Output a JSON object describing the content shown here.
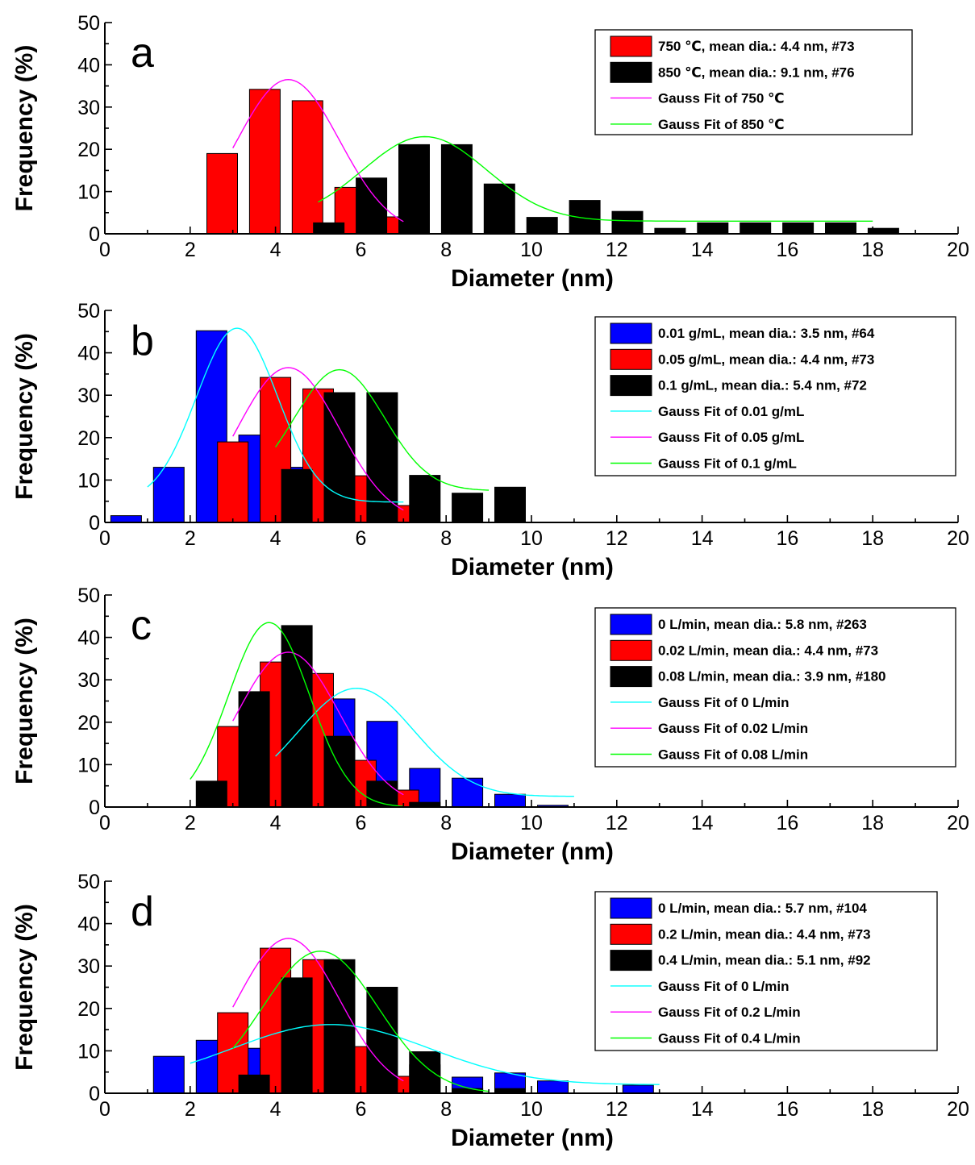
{
  "chart_data": [
    {
      "type": "bar",
      "panel_label": "a",
      "xlabel": "Diameter (nm)",
      "ylabel": "Frequency (%)",
      "xlim": [
        0,
        20
      ],
      "ylim": [
        0,
        50
      ],
      "xticks": [
        "0",
        "2",
        "4",
        "6",
        "8",
        "10",
        "12",
        "14",
        "16",
        "18",
        "20"
      ],
      "yticks": [
        "0",
        "10",
        "20",
        "30",
        "40",
        "50"
      ],
      "legend_position": "top-right",
      "series": [
        {
          "name": "750 ℃, mean dia.: 4.4 nm, #73",
          "color": "#ff0000",
          "x": [
            3,
            4,
            5,
            6,
            7
          ],
          "values": [
            19,
            34.2,
            31.5,
            11,
            4
          ]
        },
        {
          "name": "850 ℃, mean dia.: 9.1 nm, #76",
          "color": "#000000",
          "x": [
            5,
            6,
            7,
            8,
            9,
            10,
            11,
            12,
            13,
            14,
            15,
            16,
            17,
            18
          ],
          "values": [
            2.6,
            13.2,
            21.1,
            21.1,
            11.8,
            3.9,
            7.9,
            5.3,
            1.3,
            2.6,
            2.6,
            2.6,
            2.6,
            1.3
          ]
        }
      ],
      "fits": [
        {
          "name": "Gauss Fit of 750 ℃",
          "color": "#ff00ff",
          "y0": 0,
          "A": 36.5,
          "xc": 4.3,
          "w": 1.2,
          "x_range": [
            3,
            7
          ]
        },
        {
          "name": "Gauss Fit of 850 ℃",
          "color": "#00ff00",
          "y0": 3,
          "A": 20,
          "xc": 7.5,
          "w": 1.45,
          "x_range": [
            5,
            18
          ]
        }
      ]
    },
    {
      "type": "bar",
      "panel_label": "b",
      "xlabel": "Diameter (nm)",
      "ylabel": "Frequency (%)",
      "xlim": [
        0,
        20
      ],
      "ylim": [
        0,
        50
      ],
      "xticks": [
        "0",
        "2",
        "4",
        "6",
        "8",
        "10",
        "12",
        "14",
        "16",
        "18",
        "20"
      ],
      "yticks": [
        "0",
        "10",
        "20",
        "30",
        "40",
        "50"
      ],
      "legend_position": "top-right",
      "series": [
        {
          "name": "0.01 g/mL, mean dia.: 3.5 nm, #64",
          "color": "#0000ff",
          "x": [
            1,
            2,
            3,
            4,
            5,
            6,
            7
          ],
          "values": [
            1.6,
            13,
            45.2,
            20.6,
            13,
            3.6,
            1.6
          ]
        },
        {
          "name": "0.05 g/mL, mean dia.: 4.4 nm, #73",
          "color": "#ff0000",
          "x": [
            3,
            4,
            5,
            6,
            7
          ],
          "values": [
            19,
            34.2,
            31.5,
            11,
            4
          ]
        },
        {
          "name": "0.1 g/mL, mean dia.: 5.4 nm, #72",
          "color": "#000000",
          "x": [
            4,
            5,
            6,
            7,
            8,
            9
          ],
          "values": [
            12.5,
            30.6,
            30.6,
            11.1,
            6.9,
            8.3
          ]
        }
      ],
      "fits": [
        {
          "name": "Gauss Fit of 0.01 g/mL",
          "color": "#00ffff",
          "y0": 4.8,
          "A": 41,
          "xc": 3.1,
          "w": 0.95,
          "x_range": [
            1,
            7
          ]
        },
        {
          "name": "Gauss Fit of  0.05 g/mL",
          "color": "#ff00ff",
          "y0": 0,
          "A": 36.5,
          "xc": 4.3,
          "w": 1.2,
          "x_range": [
            3,
            7
          ]
        },
        {
          "name": "Gauss Fit of 0.1 g/mL",
          "color": "#00ff00",
          "y0": 7.5,
          "A": 28.5,
          "xc": 5.5,
          "w": 1.05,
          "x_range": [
            4,
            9
          ]
        }
      ]
    },
    {
      "type": "bar",
      "panel_label": "c",
      "xlabel": "Diameter (nm)",
      "ylabel": "Frequency (%)",
      "xlim": [
        0,
        20
      ],
      "ylim": [
        0,
        50
      ],
      "xticks": [
        "0",
        "2",
        "4",
        "6",
        "8",
        "10",
        "12",
        "14",
        "16",
        "18",
        "20"
      ],
      "yticks": [
        "0",
        "10",
        "20",
        "30",
        "40",
        "50"
      ],
      "legend_position": "top-right",
      "series": [
        {
          "name": "0 L/min, mean dia.: 5.8 nm, #263",
          "color": "#0000ff",
          "x": [
            4,
            5,
            6,
            7,
            8,
            9,
            10,
            11
          ],
          "values": [
            7.4,
            27.4,
            25.5,
            20.2,
            9.1,
            6.8,
            3,
            0.4
          ]
        },
        {
          "name": "0.02 L/min, mean dia.: 4.4 nm, #73",
          "color": "#ff0000",
          "x": [
            3,
            4,
            5,
            6,
            7
          ],
          "values": [
            19,
            34.2,
            31.5,
            11,
            4
          ]
        },
        {
          "name": "0.08 L/min, mean dia.: 3.9 nm, #180",
          "color": "#000000",
          "x": [
            2,
            3,
            4,
            5,
            6,
            7
          ],
          "values": [
            6.1,
            27.2,
            42.8,
            16.7,
            6.1,
            1.1
          ]
        }
      ],
      "fits": [
        {
          "name": "Gauss Fit of 0 L/min",
          "color": "#00ffff",
          "y0": 2.5,
          "A": 25.5,
          "xc": 5.9,
          "w": 1.35,
          "x_range": [
            4,
            11
          ]
        },
        {
          "name": "Gauss Fit of  0.02 L/min",
          "color": "#ff00ff",
          "y0": 0,
          "A": 36.5,
          "xc": 4.3,
          "w": 1.2,
          "x_range": [
            3,
            7
          ]
        },
        {
          "name": "Gauss Fit of 0.08 L/min",
          "color": "#00ff00",
          "y0": 0,
          "A": 43.5,
          "xc": 3.85,
          "w": 0.95,
          "x_range": [
            2,
            7
          ]
        }
      ]
    },
    {
      "type": "bar",
      "panel_label": "d",
      "xlabel": "Diameter (nm)",
      "ylabel": "Frequency (%)",
      "xlim": [
        0,
        20
      ],
      "ylim": [
        0,
        50
      ],
      "xticks": [
        "0",
        "2",
        "4",
        "6",
        "8",
        "10",
        "12",
        "14",
        "16",
        "18",
        "20"
      ],
      "yticks": [
        "0",
        "10",
        "20",
        "30",
        "40",
        "50"
      ],
      "legend_position": "top-right",
      "series": [
        {
          "name": "0 L/min, mean dia.: 5.7 nm, #104",
          "color": "#0000ff",
          "x": [
            2,
            3,
            4,
            5,
            6,
            7,
            8,
            9,
            10,
            11,
            13
          ],
          "values": [
            8.7,
            12.5,
            10.6,
            16.4,
            17.3,
            14.4,
            6.7,
            3.8,
            4.8,
            2.9,
            1.9
          ]
        },
        {
          "name": "0.2 L/min, mean dia.: 4.4 nm, #73",
          "color": "#ff0000",
          "x": [
            3,
            4,
            5,
            6,
            7
          ],
          "values": [
            19,
            34.2,
            31.5,
            11,
            4
          ]
        },
        {
          "name": "0.4 L/min, mean dia.: 5.1 nm, #92",
          "color": "#000000",
          "x": [
            3,
            4,
            5,
            6,
            7,
            8,
            9
          ],
          "values": [
            4.3,
            27.2,
            31.5,
            25,
            9.8,
            1.1,
            1.1
          ]
        }
      ],
      "fits": [
        {
          "name": "Gauss Fit of 0 L/min",
          "color": "#00ffff",
          "y0": 2,
          "A": 14.2,
          "xc": 5.3,
          "w": 2.3,
          "x_range": [
            2,
            13
          ]
        },
        {
          "name": "Gauss Fit of  0.2 L/min",
          "color": "#ff00ff",
          "y0": 0,
          "A": 36.5,
          "xc": 4.3,
          "w": 1.2,
          "x_range": [
            3,
            7
          ]
        },
        {
          "name": "Gauss Fit of 0.4 L/min",
          "color": "#00ff00",
          "y0": 0,
          "A": 33.5,
          "xc": 5.05,
          "w": 1.35,
          "x_range": [
            3,
            9
          ]
        }
      ]
    }
  ]
}
